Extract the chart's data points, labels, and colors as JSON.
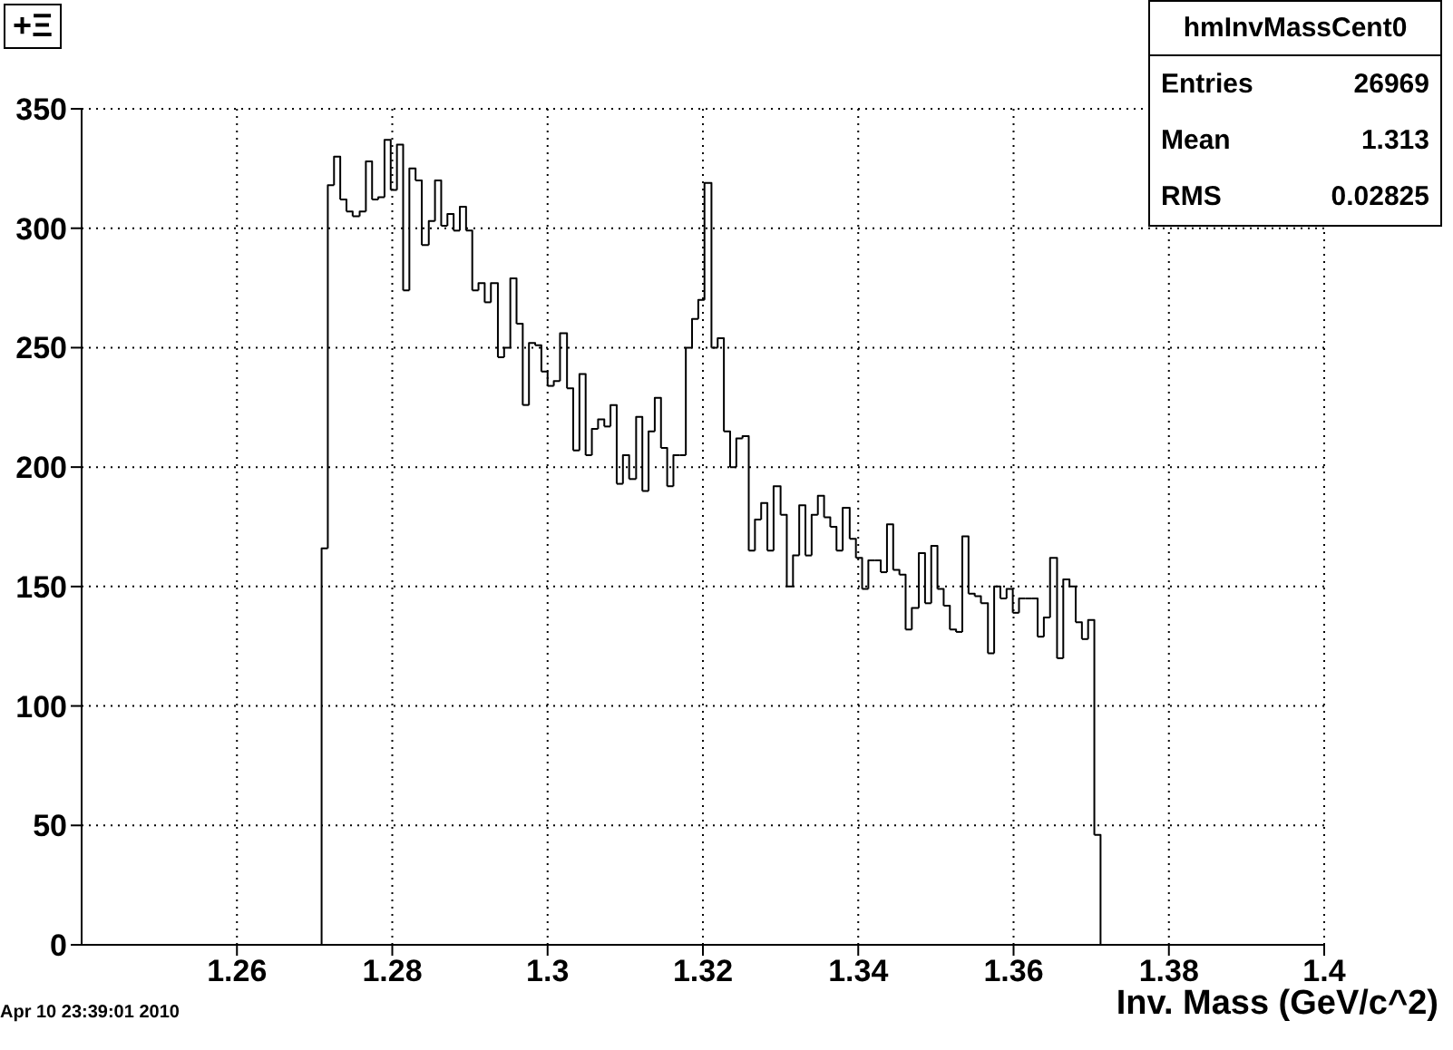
{
  "chart_data": {
    "type": "histogram",
    "title": "+Ξ",
    "xlabel": "Inv. Mass (GeV/c^2)",
    "annotations": [
      "hmInvMassCent0",
      "Entries",
      "26969",
      "Mean",
      "1.313",
      "RMS",
      "0.02825",
      "Apr 10 23:39:01 2010"
    ],
    "bins": [
      1.2709,
      1.2717,
      1.2725,
      1.2733,
      1.2741,
      1.2749,
      1.2758,
      1.2766,
      1.2774,
      1.2782,
      1.279,
      1.2798,
      1.2806,
      1.2814,
      1.2822,
      1.283,
      1.2838,
      1.2847,
      1.2855,
      1.2863,
      1.2871,
      1.2879,
      1.2887,
      1.2895,
      1.2903,
      1.2911,
      1.2919,
      1.2927,
      1.2936,
      1.2944,
      1.2952,
      1.296,
      1.2968,
      1.2976,
      1.2984,
      1.2992,
      1.3,
      1.3008,
      1.3016,
      1.3025,
      1.3033,
      1.3041,
      1.3049,
      1.3057,
      1.3065,
      1.3073,
      1.3081,
      1.3089,
      1.3097,
      1.3105,
      1.3114,
      1.3122,
      1.313,
      1.3138,
      1.3146,
      1.3154,
      1.3162,
      1.317,
      1.3178,
      1.3186,
      1.3194,
      1.3202,
      1.3211,
      1.3219,
      1.3227,
      1.3235,
      1.3243,
      1.3251,
      1.3259,
      1.3267,
      1.3275,
      1.3283,
      1.3291,
      1.33,
      1.3308,
      1.3316,
      1.3324,
      1.3332,
      1.334,
      1.3348,
      1.3356,
      1.3364,
      1.3372,
      1.338,
      1.3389,
      1.3397,
      1.3405,
      1.3413,
      1.3421,
      1.3429,
      1.3437,
      1.3445,
      1.3453,
      1.3461,
      1.3469,
      1.3478,
      1.3486,
      1.3494,
      1.3502,
      1.351,
      1.3518,
      1.3526,
      1.3534,
      1.3542,
      1.355,
      1.3558,
      1.3567,
      1.3575,
      1.3583,
      1.3591,
      1.3599,
      1.3607,
      1.3615,
      1.3623,
      1.3631,
      1.3639,
      1.3647,
      1.3656,
      1.3664,
      1.3672,
      1.368,
      1.3688,
      1.3696,
      1.3704,
      1.3712
    ],
    "values": [
      166,
      318,
      330,
      312,
      307,
      305,
      307,
      328,
      312,
      313,
      337,
      316,
      335,
      274,
      325,
      320,
      293,
      303,
      320,
      301,
      306,
      299,
      309,
      299,
      274,
      277,
      269,
      277,
      246,
      250,
      279,
      260,
      226,
      252,
      251,
      240,
      234,
      236,
      256,
      233,
      207,
      239,
      205,
      216,
      220,
      217,
      226,
      193,
      205,
      195,
      221,
      190,
      215,
      229,
      208,
      192,
      205,
      205,
      250,
      262,
      270,
      319,
      250,
      254,
      215,
      200,
      212,
      213,
      165,
      178,
      185,
      165,
      192,
      180,
      150,
      163,
      184,
      163,
      180,
      188,
      179,
      175,
      165,
      183,
      170,
      162,
      149,
      161,
      161,
      156,
      176,
      157,
      155,
      132,
      141,
      164,
      143,
      167,
      149,
      142,
      132,
      131,
      171,
      147,
      146,
      143,
      122,
      150,
      145,
      149,
      139,
      145,
      145,
      145,
      129,
      137,
      162,
      120,
      153,
      150,
      135,
      128,
      136,
      46
    ],
    "color": "#000000",
    "xlim": [
      1.24,
      1.4
    ],
    "xticks": [
      1.26,
      1.28,
      1.3,
      1.32,
      1.34,
      1.36,
      1.38,
      1.4
    ],
    "ylim": [
      0,
      350
    ],
    "yticks": [
      0,
      50,
      100,
      150,
      200,
      250,
      300,
      350
    ],
    "grid": true
  }
}
